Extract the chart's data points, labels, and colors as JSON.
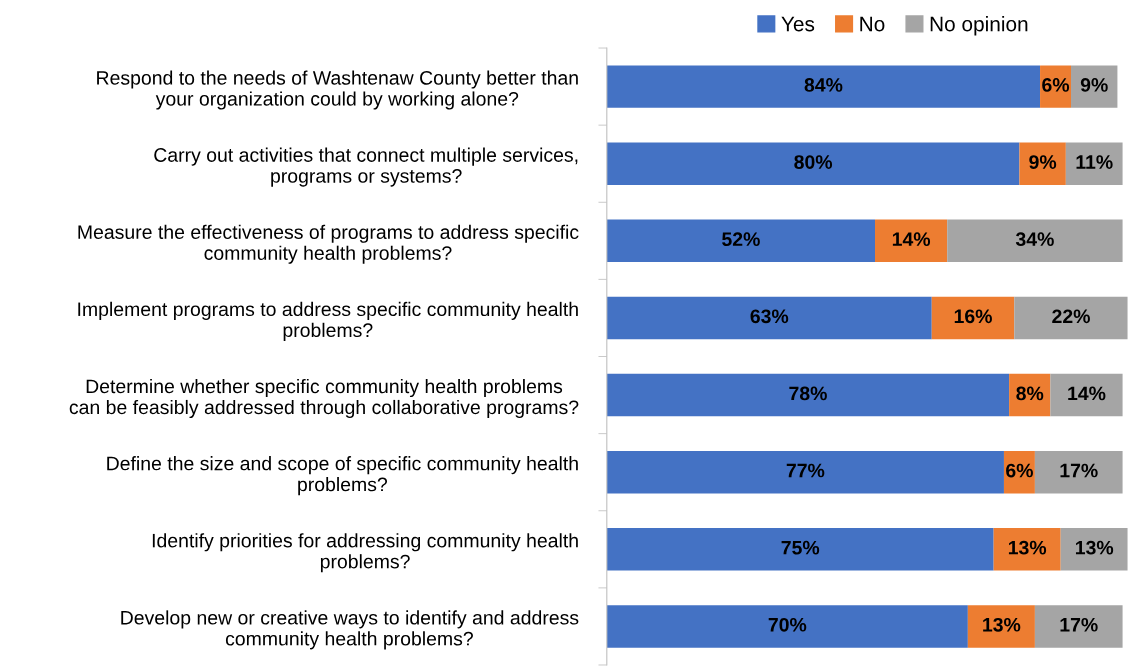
{
  "chart_data": {
    "type": "bar",
    "orientation": "horizontal",
    "stacked": true,
    "legend": "top",
    "grid": false,
    "tick_labels": "y",
    "categories": [
      "Respond to the needs of Washtenaw County better than\nyour organization could by working alone?",
      "Carry out activities that connect multiple services,\nprograms or systems?",
      "Measure the effectiveness of programs to address specific\ncommunity health problems?",
      "Implement programs to address specific community health\nproblems?",
      "Determine whether specific community health problems\ncan be feasibly addressed through collaborative programs?",
      "Define the size and scope of specific community health\nproblems?",
      "Identify priorities for addressing community health\nproblems?",
      "Develop new or creative ways to identify and address\ncommunity health problems?"
    ],
    "series": [
      {
        "name": "Yes",
        "color": "#4472c4",
        "values": [
          84,
          80,
          52,
          63,
          78,
          77,
          75,
          70
        ],
        "value_labels": [
          "84%",
          "80%",
          "52%",
          "63%",
          "78%",
          "77%",
          "75%",
          "70%"
        ]
      },
      {
        "name": "No",
        "color": "#ed7d31",
        "values": [
          6,
          9,
          14,
          16,
          8,
          6,
          13,
          13
        ],
        "value_labels": [
          "6%",
          "9%",
          "14%",
          "16%",
          "8%",
          "6%",
          "13%",
          "13%"
        ]
      },
      {
        "name": "No opinion",
        "color": "#a5a5a5",
        "values": [
          9,
          11,
          34,
          22,
          14,
          17,
          13,
          17
        ],
        "value_labels": [
          "9%",
          "11%",
          "34%",
          "22%",
          "14%",
          "17%",
          "13%",
          "17%"
        ]
      }
    ]
  }
}
